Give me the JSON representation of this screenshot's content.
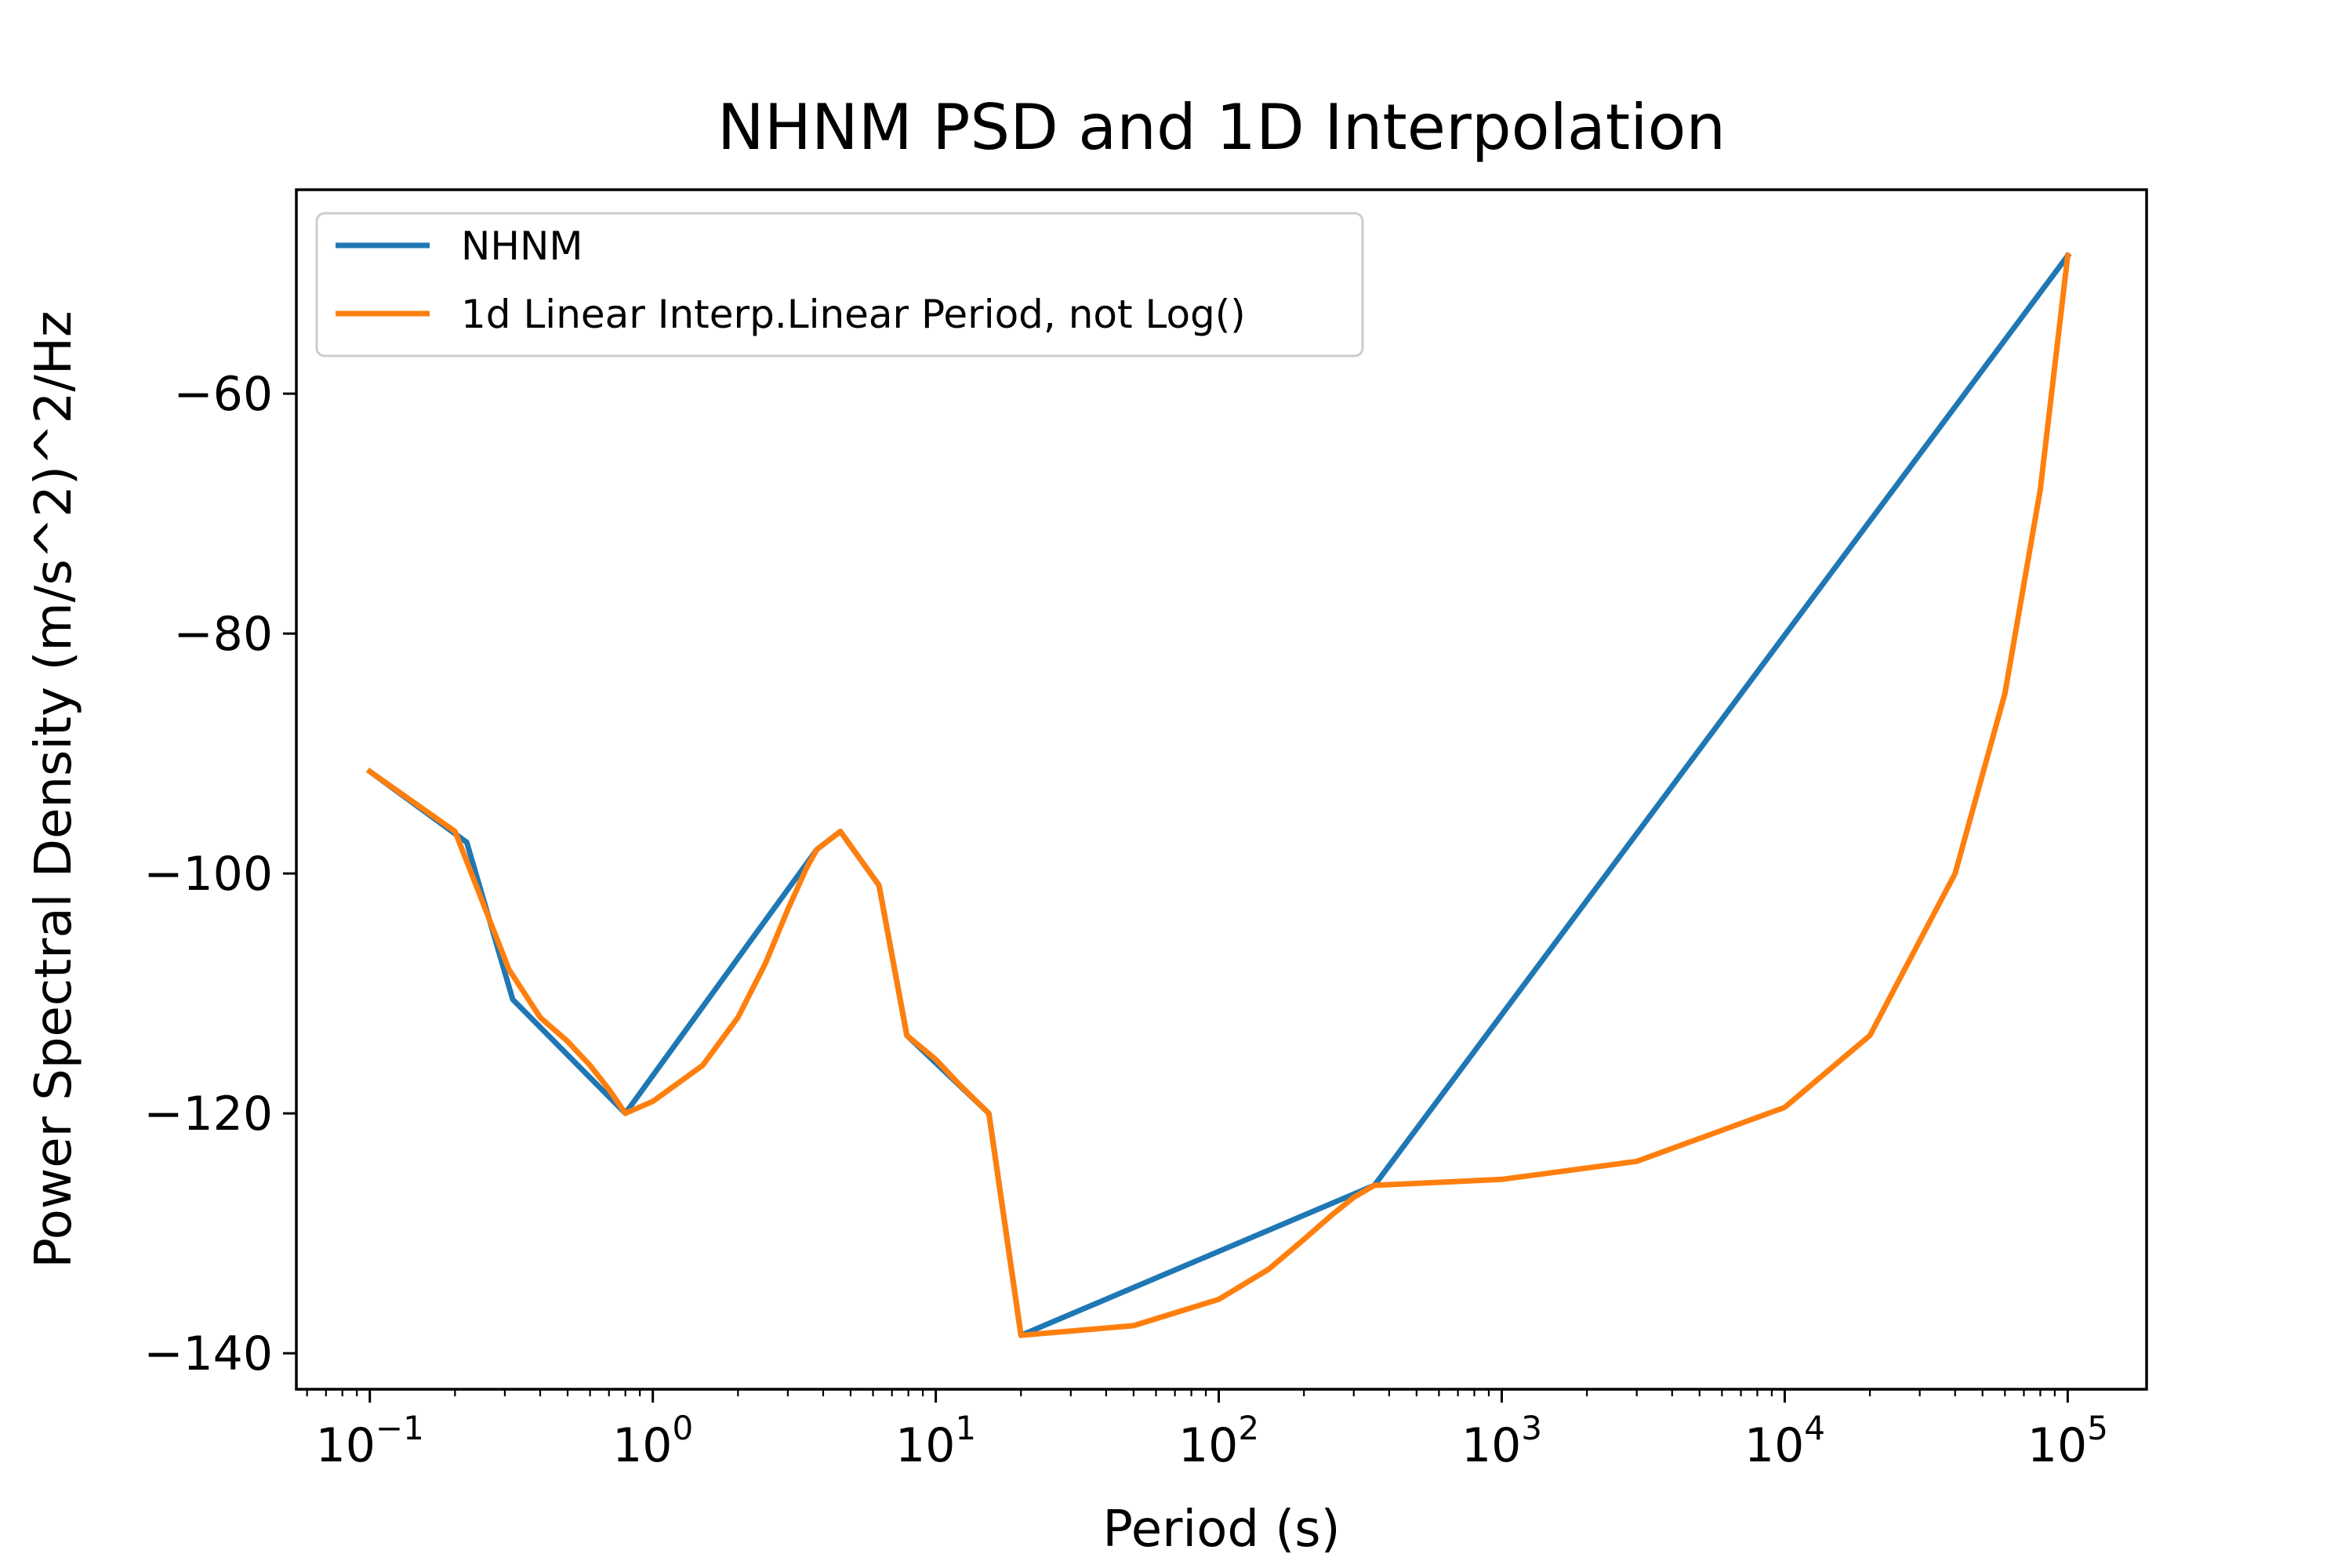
{
  "chart_data": {
    "type": "line",
    "title": "NHNM PSD and 1D Interpolation",
    "xlabel": "Period (s)",
    "ylabel": "Power Spectral Density (m/s^2)^2/Hz",
    "xscale": "log",
    "xlim": [
      0.055,
      190000
    ],
    "ylim": [
      -143,
      -43
    ],
    "grid": false,
    "legend_position": "top-left",
    "x_ticks": [
      {
        "value": 0.1,
        "base": "10",
        "exp": "−1"
      },
      {
        "value": 1,
        "base": "10",
        "exp": "0"
      },
      {
        "value": 10,
        "base": "10",
        "exp": "1"
      },
      {
        "value": 100,
        "base": "10",
        "exp": "2"
      },
      {
        "value": 1000,
        "base": "10",
        "exp": "3"
      },
      {
        "value": 10000,
        "base": "10",
        "exp": "4"
      },
      {
        "value": 100000,
        "base": "10",
        "exp": "5"
      }
    ],
    "y_ticks": [
      {
        "value": -60,
        "label": "−60"
      },
      {
        "value": -80,
        "label": "−80"
      },
      {
        "value": -100,
        "label": "−100"
      },
      {
        "value": -120,
        "label": "−120"
      },
      {
        "value": -140,
        "label": "−140"
      }
    ],
    "series": [
      {
        "name": "NHNM",
        "color": "#1f77b4",
        "x": [
          0.1,
          0.22,
          0.32,
          0.8,
          3.8,
          4.6,
          6.3,
          7.9,
          15.4,
          20,
          354.8,
          100000
        ],
        "y": [
          -91.5,
          -97.4,
          -110.5,
          -120,
          -98,
          -96.5,
          -101,
          -113.5,
          -120,
          -138.5,
          -126,
          -48.5
        ]
      },
      {
        "name": "1d Linear Interp.Linear Period, not Log()",
        "color": "#ff7f0e",
        "x": [
          0.1,
          0.2,
          0.31,
          0.4,
          0.5,
          0.6,
          0.7,
          0.8,
          1.0,
          1.5,
          2.0,
          2.5,
          3.0,
          3.5,
          3.8,
          4.6,
          6.3,
          7.9,
          10,
          12,
          15.4,
          20,
          50,
          100,
          150,
          200,
          250,
          300,
          354.8,
          1000,
          3000,
          10000,
          20000,
          40000,
          60000,
          80000,
          100000
        ],
        "y": [
          -91.5,
          -96.5,
          -108,
          -112,
          -114,
          -116,
          -118,
          -120,
          -119,
          -116,
          -112,
          -107.5,
          -103,
          -99.5,
          -98,
          -96.5,
          -101,
          -113.5,
          -115.5,
          -117.5,
          -120,
          -138.5,
          -137.7,
          -135.5,
          -133,
          -130.5,
          -128.5,
          -127,
          -126,
          -125.5,
          -124,
          -119.5,
          -113.5,
          -100,
          -85,
          -68,
          -48.5
        ]
      }
    ]
  }
}
